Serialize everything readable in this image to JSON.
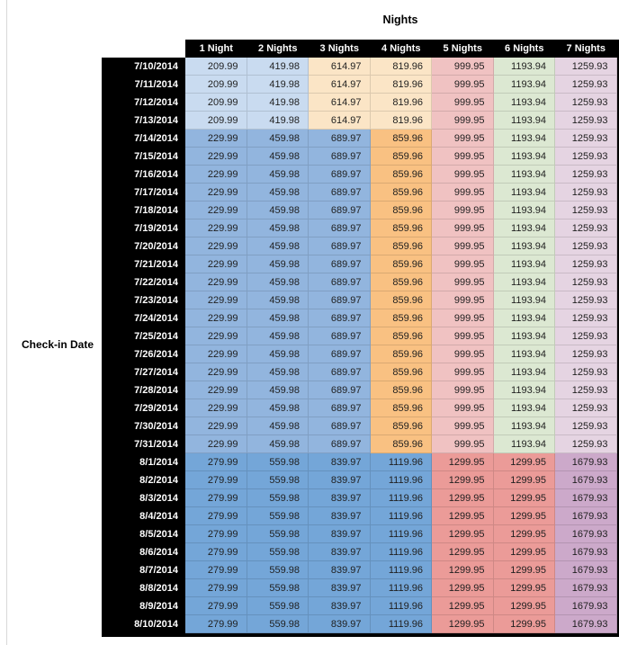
{
  "title": "Nights",
  "row_axis_label": "Check-in Date",
  "palette": {
    "blue_light": "#C9DBF0",
    "peach_light": "#FBE5C6",
    "pink": "#F0C2C2",
    "green": "#DCE8D2",
    "lavender": "#E5D4E2",
    "blue_med": "#92B5DE",
    "orange": "#F9C182",
    "blue_dark": "#74A6D8",
    "salmon": "#EB9B98",
    "mauve": "#CCA9CA"
  },
  "header_colors": {
    "bg": "#000000",
    "text": "#ffffff"
  },
  "section_colors": {
    "a": [
      "blue_light",
      "blue_light",
      "peach_light",
      "peach_light",
      "pink",
      "green",
      "lavender"
    ],
    "b": [
      "blue_med",
      "blue_med",
      "blue_med",
      "orange",
      "pink",
      "green",
      "lavender"
    ],
    "c": [
      "blue_dark",
      "blue_dark",
      "blue_dark",
      "blue_dark",
      "salmon",
      "salmon",
      "mauve"
    ]
  },
  "chart_data": {
    "type": "table",
    "title": "Nights",
    "row_axis_label": "Check-in Date",
    "columns": [
      "1 Night",
      "2 Nights",
      "3 Nights",
      "4 Nights",
      "5 Nights",
      "6 Nights",
      "7 Nights"
    ],
    "rows": [
      {
        "date": "7/10/2014",
        "section": "a",
        "values": [
          "209.99",
          "419.98",
          "614.97",
          "819.96",
          "999.95",
          "1193.94",
          "1259.93"
        ]
      },
      {
        "date": "7/11/2014",
        "section": "a",
        "values": [
          "209.99",
          "419.98",
          "614.97",
          "819.96",
          "999.95",
          "1193.94",
          "1259.93"
        ]
      },
      {
        "date": "7/12/2014",
        "section": "a",
        "values": [
          "209.99",
          "419.98",
          "614.97",
          "819.96",
          "999.95",
          "1193.94",
          "1259.93"
        ]
      },
      {
        "date": "7/13/2014",
        "section": "a",
        "values": [
          "209.99",
          "419.98",
          "614.97",
          "819.96",
          "999.95",
          "1193.94",
          "1259.93"
        ]
      },
      {
        "date": "7/14/2014",
        "section": "b",
        "values": [
          "229.99",
          "459.98",
          "689.97",
          "859.96",
          "999.95",
          "1193.94",
          "1259.93"
        ]
      },
      {
        "date": "7/15/2014",
        "section": "b",
        "values": [
          "229.99",
          "459.98",
          "689.97",
          "859.96",
          "999.95",
          "1193.94",
          "1259.93"
        ]
      },
      {
        "date": "7/16/2014",
        "section": "b",
        "values": [
          "229.99",
          "459.98",
          "689.97",
          "859.96",
          "999.95",
          "1193.94",
          "1259.93"
        ]
      },
      {
        "date": "7/17/2014",
        "section": "b",
        "values": [
          "229.99",
          "459.98",
          "689.97",
          "859.96",
          "999.95",
          "1193.94",
          "1259.93"
        ]
      },
      {
        "date": "7/18/2014",
        "section": "b",
        "values": [
          "229.99",
          "459.98",
          "689.97",
          "859.96",
          "999.95",
          "1193.94",
          "1259.93"
        ]
      },
      {
        "date": "7/19/2014",
        "section": "b",
        "values": [
          "229.99",
          "459.98",
          "689.97",
          "859.96",
          "999.95",
          "1193.94",
          "1259.93"
        ]
      },
      {
        "date": "7/20/2014",
        "section": "b",
        "values": [
          "229.99",
          "459.98",
          "689.97",
          "859.96",
          "999.95",
          "1193.94",
          "1259.93"
        ]
      },
      {
        "date": "7/21/2014",
        "section": "b",
        "values": [
          "229.99",
          "459.98",
          "689.97",
          "859.96",
          "999.95",
          "1193.94",
          "1259.93"
        ]
      },
      {
        "date": "7/22/2014",
        "section": "b",
        "values": [
          "229.99",
          "459.98",
          "689.97",
          "859.96",
          "999.95",
          "1193.94",
          "1259.93"
        ]
      },
      {
        "date": "7/23/2014",
        "section": "b",
        "values": [
          "229.99",
          "459.98",
          "689.97",
          "859.96",
          "999.95",
          "1193.94",
          "1259.93"
        ]
      },
      {
        "date": "7/24/2014",
        "section": "b",
        "values": [
          "229.99",
          "459.98",
          "689.97",
          "859.96",
          "999.95",
          "1193.94",
          "1259.93"
        ]
      },
      {
        "date": "7/25/2014",
        "section": "b",
        "values": [
          "229.99",
          "459.98",
          "689.97",
          "859.96",
          "999.95",
          "1193.94",
          "1259.93"
        ]
      },
      {
        "date": "7/26/2014",
        "section": "b",
        "values": [
          "229.99",
          "459.98",
          "689.97",
          "859.96",
          "999.95",
          "1193.94",
          "1259.93"
        ]
      },
      {
        "date": "7/27/2014",
        "section": "b",
        "values": [
          "229.99",
          "459.98",
          "689.97",
          "859.96",
          "999.95",
          "1193.94",
          "1259.93"
        ]
      },
      {
        "date": "7/28/2014",
        "section": "b",
        "values": [
          "229.99",
          "459.98",
          "689.97",
          "859.96",
          "999.95",
          "1193.94",
          "1259.93"
        ]
      },
      {
        "date": "7/29/2014",
        "section": "b",
        "values": [
          "229.99",
          "459.98",
          "689.97",
          "859.96",
          "999.95",
          "1193.94",
          "1259.93"
        ]
      },
      {
        "date": "7/30/2014",
        "section": "b",
        "values": [
          "229.99",
          "459.98",
          "689.97",
          "859.96",
          "999.95",
          "1193.94",
          "1259.93"
        ]
      },
      {
        "date": "7/31/2014",
        "section": "b",
        "values": [
          "229.99",
          "459.98",
          "689.97",
          "859.96",
          "999.95",
          "1193.94",
          "1259.93"
        ]
      },
      {
        "date": "8/1/2014",
        "section": "c",
        "values": [
          "279.99",
          "559.98",
          "839.97",
          "1119.96",
          "1299.95",
          "1299.95",
          "1679.93"
        ]
      },
      {
        "date": "8/2/2014",
        "section": "c",
        "values": [
          "279.99",
          "559.98",
          "839.97",
          "1119.96",
          "1299.95",
          "1299.95",
          "1679.93"
        ]
      },
      {
        "date": "8/3/2014",
        "section": "c",
        "values": [
          "279.99",
          "559.98",
          "839.97",
          "1119.96",
          "1299.95",
          "1299.95",
          "1679.93"
        ]
      },
      {
        "date": "8/4/2014",
        "section": "c",
        "values": [
          "279.99",
          "559.98",
          "839.97",
          "1119.96",
          "1299.95",
          "1299.95",
          "1679.93"
        ]
      },
      {
        "date": "8/5/2014",
        "section": "c",
        "values": [
          "279.99",
          "559.98",
          "839.97",
          "1119.96",
          "1299.95",
          "1299.95",
          "1679.93"
        ]
      },
      {
        "date": "8/6/2014",
        "section": "c",
        "values": [
          "279.99",
          "559.98",
          "839.97",
          "1119.96",
          "1299.95",
          "1299.95",
          "1679.93"
        ]
      },
      {
        "date": "8/7/2014",
        "section": "c",
        "values": [
          "279.99",
          "559.98",
          "839.97",
          "1119.96",
          "1299.95",
          "1299.95",
          "1679.93"
        ]
      },
      {
        "date": "8/8/2014",
        "section": "c",
        "values": [
          "279.99",
          "559.98",
          "839.97",
          "1119.96",
          "1299.95",
          "1299.95",
          "1679.93"
        ]
      },
      {
        "date": "8/9/2014",
        "section": "c",
        "values": [
          "279.99",
          "559.98",
          "839.97",
          "1119.96",
          "1299.95",
          "1299.95",
          "1679.93"
        ]
      },
      {
        "date": "8/10/2014",
        "section": "c",
        "values": [
          "279.99",
          "559.98",
          "839.97",
          "1119.96",
          "1299.95",
          "1299.95",
          "1679.93"
        ]
      }
    ]
  }
}
